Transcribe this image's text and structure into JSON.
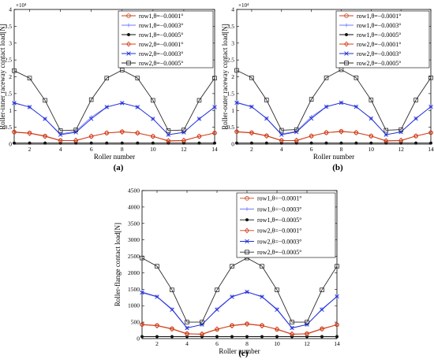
{
  "colors": {
    "row1_0001": "#c8411b",
    "row1_0003": "#6f79ff",
    "row1_0005": "#111111",
    "row2_0001": "#d43d1a",
    "row2_0003": "#1f2cd4",
    "row2_0005": "#2a2a2a"
  },
  "chart_data": [
    {
      "type": "line",
      "panel_label": "(a)",
      "xlabel": "Roller number",
      "ylabel": "Roller-inner raceway contact load[N]",
      "y_exponent_label": "×10⁴",
      "xlim": [
        1,
        14
      ],
      "ylim": [
        0,
        40000
      ],
      "x_ticks": [
        2,
        4,
        6,
        8,
        10,
        12,
        14
      ],
      "y_ticks": [
        0,
        5000,
        10000,
        15000,
        20000,
        25000,
        30000,
        35000,
        40000
      ],
      "y_tick_labels": [
        "0",
        "0.5",
        "1",
        "1.5",
        "2",
        "2.5",
        "3",
        "3.5",
        "4"
      ],
      "legend_position": "top-right",
      "x": [
        1,
        2,
        3,
        4,
        5,
        6,
        7,
        8,
        9,
        10,
        11,
        12,
        13,
        14
      ],
      "series": [
        {
          "name": "row1,θ=−0.0001°",
          "marker": "circle",
          "color_key": "row1_0001",
          "values": [
            3600,
            3300,
            2400,
            1100,
            1000,
            2300,
            3300,
            3700,
            3300,
            2300,
            900,
            1000,
            2300,
            3300
          ]
        },
        {
          "name": "row1,θ=−0.0003°",
          "marker": "plus",
          "color_key": "row1_0003",
          "values": [
            12300,
            11000,
            7500,
            3000,
            3800,
            8000,
            11000,
            12200,
            11000,
            7500,
            2800,
            3500,
            7500,
            11000
          ]
        },
        {
          "name": "row1,θ=−0.0005°",
          "marker": "dot",
          "color_key": "row1_0005",
          "values": [
            300,
            300,
            300,
            300,
            300,
            300,
            300,
            300,
            300,
            300,
            300,
            300,
            300,
            300
          ]
        },
        {
          "name": "row2,θ=−0.0001°",
          "marker": "diamond",
          "color_key": "row2_0001",
          "values": [
            3500,
            3200,
            2300,
            1000,
            1100,
            2300,
            3300,
            3600,
            3300,
            2300,
            1000,
            1100,
            2300,
            3300
          ]
        },
        {
          "name": "row2,θ=−0.0003°",
          "marker": "x",
          "color_key": "row2_0003",
          "values": [
            12200,
            11000,
            7500,
            2800,
            3500,
            7500,
            11000,
            12200,
            11000,
            7500,
            2800,
            3500,
            7500,
            11000
          ]
        },
        {
          "name": "row2,θ=−0.0005°",
          "marker": "square",
          "color_key": "row2_0005",
          "values": [
            21800,
            19600,
            13000,
            4000,
            4200,
            13200,
            19600,
            22000,
            19600,
            13000,
            4000,
            4200,
            13000,
            19600
          ]
        }
      ]
    },
    {
      "type": "line",
      "panel_label": "(b)",
      "xlabel": "Roller number",
      "ylabel": "Roller-outer raceway contact load[N]",
      "y_exponent_label": "×10⁴",
      "xlim": [
        1,
        14
      ],
      "ylim": [
        0,
        40000
      ],
      "x_ticks": [
        2,
        4,
        6,
        8,
        10,
        12,
        14
      ],
      "y_ticks": [
        0,
        5000,
        10000,
        15000,
        20000,
        25000,
        30000,
        35000,
        40000
      ],
      "y_tick_labels": [
        "0",
        "0.5",
        "1",
        "1.5",
        "2",
        "2.5",
        "3",
        "3.5",
        "4"
      ],
      "legend_position": "top-right",
      "x": [
        1,
        2,
        3,
        4,
        5,
        6,
        7,
        8,
        9,
        10,
        11,
        12,
        13,
        14
      ],
      "series": [
        {
          "name": "row1,θ=−0.0001°",
          "marker": "circle",
          "color_key": "row1_0001",
          "values": [
            3700,
            3400,
            2500,
            1100,
            1000,
            2400,
            3400,
            3800,
            3400,
            2400,
            900,
            1000,
            2400,
            3400
          ]
        },
        {
          "name": "row1,θ=−0.0003°",
          "marker": "plus",
          "color_key": "row1_0003",
          "values": [
            12400,
            11100,
            7600,
            3000,
            3800,
            8100,
            11100,
            12300,
            11100,
            7600,
            2800,
            3600,
            7600,
            11100
          ]
        },
        {
          "name": "row1,θ=−0.0005°",
          "marker": "dot",
          "color_key": "row1_0005",
          "values": [
            300,
            300,
            300,
            300,
            300,
            300,
            300,
            300,
            300,
            300,
            300,
            300,
            300,
            300
          ]
        },
        {
          "name": "row2,θ=−0.0001°",
          "marker": "diamond",
          "color_key": "row2_0001",
          "values": [
            3600,
            3300,
            2400,
            1000,
            1100,
            2400,
            3400,
            3700,
            3400,
            2400,
            1000,
            1100,
            2400,
            3400
          ]
        },
        {
          "name": "row2,θ=−0.0003°",
          "marker": "x",
          "color_key": "row2_0003",
          "values": [
            12300,
            11100,
            7600,
            2800,
            3600,
            7600,
            11100,
            12300,
            11100,
            7600,
            2800,
            3600,
            7600,
            11100
          ]
        },
        {
          "name": "row2,θ=−0.0005°",
          "marker": "square",
          "color_key": "row2_0005",
          "values": [
            21900,
            19700,
            13100,
            4100,
            4300,
            13300,
            19700,
            22100,
            19700,
            13100,
            4100,
            4300,
            13100,
            19700
          ]
        }
      ]
    },
    {
      "type": "line",
      "panel_label": "(c)",
      "xlabel": "Roller number",
      "ylabel": "Roller-flange contact load[N]",
      "y_exponent_label": "",
      "xlim": [
        1,
        14
      ],
      "ylim": [
        0,
        4500
      ],
      "x_ticks": [
        2,
        4,
        6,
        8,
        10,
        12,
        14
      ],
      "y_ticks": [
        0,
        500,
        1000,
        1500,
        2000,
        2500,
        3000,
        3500,
        4000,
        4500
      ],
      "y_tick_labels": [
        "0",
        "500",
        "1000",
        "1500",
        "2000",
        "2500",
        "3000",
        "3500",
        "4000",
        "4500"
      ],
      "legend_position": "top-right",
      "x": [
        1,
        2,
        3,
        4,
        5,
        6,
        7,
        8,
        9,
        10,
        11,
        12,
        13,
        14
      ],
      "series": [
        {
          "name": "row1,θ=−0.0001°",
          "marker": "circle",
          "color_key": "row1_0001",
          "values": [
            430,
            400,
            300,
            150,
            130,
            280,
            400,
            450,
            400,
            280,
            130,
            150,
            300,
            420
          ]
        },
        {
          "name": "row1,θ=−0.0003°",
          "marker": "plus",
          "color_key": "row1_0003",
          "values": [
            1420,
            1280,
            900,
            330,
            420,
            900,
            1280,
            1420,
            1280,
            900,
            330,
            420,
            900,
            1280
          ]
        },
        {
          "name": "row1,θ=−0.0005°",
          "marker": "dot",
          "color_key": "row1_0005",
          "values": [
            60,
            60,
            60,
            60,
            60,
            60,
            60,
            60,
            60,
            60,
            60,
            60,
            60,
            60
          ]
        },
        {
          "name": "row2,θ=−0.0001°",
          "marker": "diamond",
          "color_key": "row2_0001",
          "values": [
            420,
            390,
            290,
            140,
            140,
            290,
            390,
            440,
            390,
            290,
            140,
            140,
            290,
            420
          ]
        },
        {
          "name": "row2,θ=−0.0003°",
          "marker": "x",
          "color_key": "row2_0003",
          "values": [
            1400,
            1270,
            880,
            320,
            430,
            880,
            1270,
            1420,
            1270,
            880,
            320,
            430,
            880,
            1280
          ]
        },
        {
          "name": "row2,θ=−0.0005°",
          "marker": "square",
          "color_key": "row2_0005",
          "values": [
            2450,
            2200,
            1480,
            500,
            500,
            1480,
            2200,
            2450,
            2200,
            1480,
            500,
            500,
            1480,
            2200
          ]
        }
      ]
    }
  ]
}
